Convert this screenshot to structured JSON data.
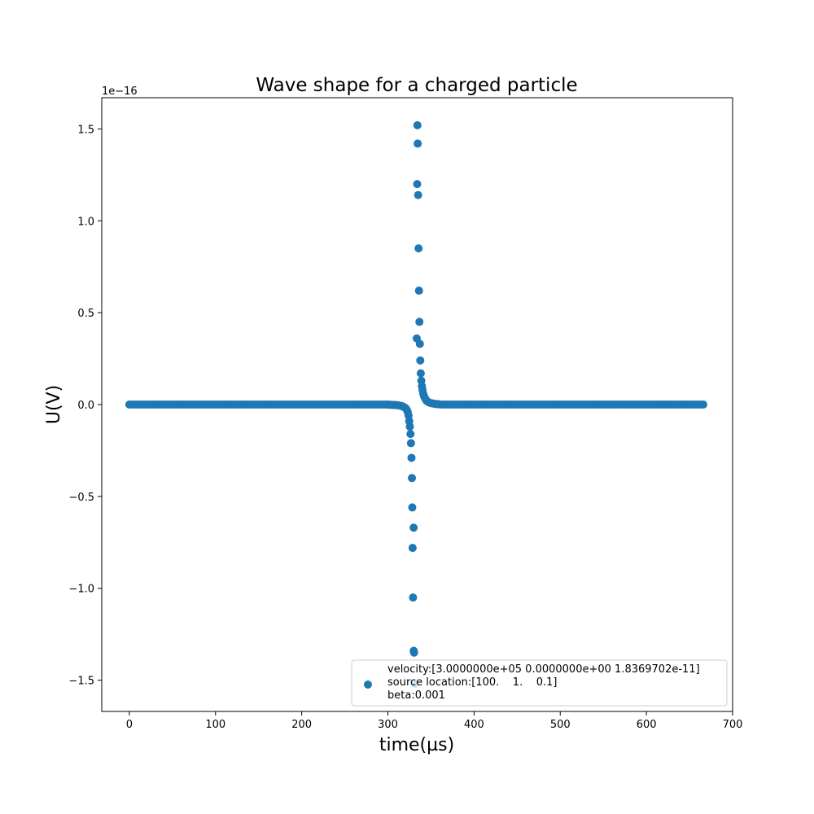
{
  "chart_data": {
    "type": "scatter",
    "title": "Wave shape for a charged particle",
    "xlabel": "time(µs)",
    "ylabel": "U(V)",
    "y_offset_label": "1e−16",
    "xlim": [
      -32,
      700
    ],
    "ylim": [
      -1.67,
      1.67
    ],
    "xticks": [
      0,
      100,
      200,
      300,
      400,
      500,
      600,
      700
    ],
    "xtick_labels": [
      "0",
      "100",
      "200",
      "300",
      "400",
      "500",
      "600",
      "700"
    ],
    "yticks": [
      -1.5,
      -1.0,
      -0.5,
      0.0,
      0.5,
      1.0,
      1.5
    ],
    "ytick_labels": [
      "−1.5",
      "−1.0",
      "−0.5",
      "0.0",
      "0.5",
      "1.0",
      "1.5"
    ],
    "grid": false,
    "legend_position": "lower-right",
    "series": [
      {
        "name": "velocity:[3.0000000e+05 0.0000000e+00 1.8369702e-11]\nsource location:[100.    1.    0.1]\nbeta:0.001",
        "color": "#1f77b4",
        "points": [
          [
            300,
            0.0
          ],
          [
            302,
            -0.001
          ],
          [
            304,
            -0.001
          ],
          [
            306,
            -0.002
          ],
          [
            308,
            -0.002
          ],
          [
            310,
            -0.003
          ],
          [
            312,
            -0.004
          ],
          [
            314,
            -0.006
          ],
          [
            316,
            -0.008
          ],
          [
            318,
            -0.012
          ],
          [
            319.5,
            -0.016
          ],
          [
            321,
            -0.022
          ],
          [
            322,
            -0.03
          ],
          [
            323,
            -0.04
          ],
          [
            324,
            -0.06
          ],
          [
            324.8,
            -0.09
          ],
          [
            325.5,
            -0.12
          ],
          [
            326.2,
            -0.16
          ],
          [
            326.8,
            -0.21
          ],
          [
            327.4,
            -0.29
          ],
          [
            327.9,
            -0.4
          ],
          [
            328.3,
            -0.56
          ],
          [
            328.7,
            -0.78
          ],
          [
            329.9,
            -0.67
          ],
          [
            329.2,
            -1.05
          ],
          [
            330.0,
            -1.34
          ],
          [
            330.4,
            -1.35
          ],
          [
            331.1,
            -1.52
          ],
          [
            333.5,
            0.36
          ],
          [
            334.0,
            1.2
          ],
          [
            334.3,
            1.52
          ],
          [
            334.6,
            1.42
          ],
          [
            335.1,
            1.14
          ],
          [
            335.6,
            0.85
          ],
          [
            336.1,
            0.62
          ],
          [
            336.6,
            0.45
          ],
          [
            337.1,
            0.33
          ],
          [
            337.6,
            0.24
          ],
          [
            338.2,
            0.17
          ],
          [
            338.8,
            0.13
          ],
          [
            339.5,
            0.1
          ],
          [
            340.2,
            0.08
          ],
          [
            341,
            0.06
          ],
          [
            342,
            0.045
          ],
          [
            343,
            0.035
          ],
          [
            344,
            0.027
          ],
          [
            345,
            0.02
          ],
          [
            346.5,
            0.015
          ],
          [
            348,
            0.011
          ],
          [
            350,
            0.008
          ],
          [
            352,
            0.006
          ],
          [
            354,
            0.004
          ],
          [
            356,
            0.003
          ],
          [
            358,
            0.002
          ],
          [
            360,
            0.001
          ]
        ],
        "baseline": {
          "x_start": 0,
          "x_end": 667,
          "step": 3,
          "y": 0.0
        }
      }
    ]
  }
}
